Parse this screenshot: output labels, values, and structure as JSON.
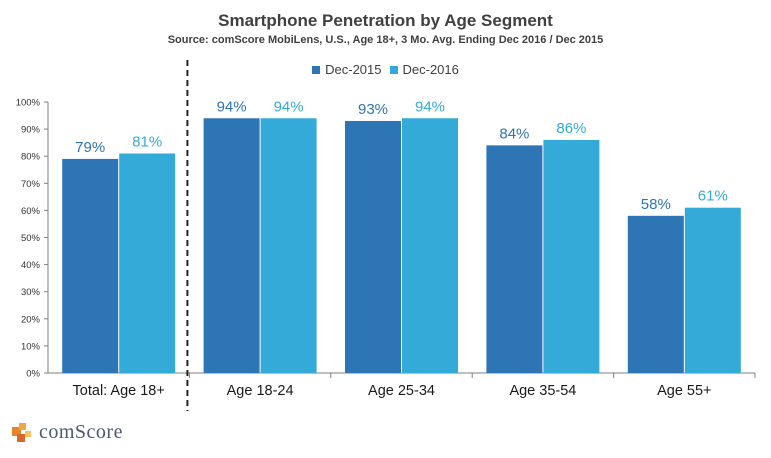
{
  "chart_data": {
    "type": "bar",
    "title": "Smartphone Penetration by Age Segment",
    "subtitle": "Source: comScore MobiLens, U.S., Age 18+, 3 Mo. Avg. Ending Dec 2016 / Dec 2015",
    "categories": [
      "Total: Age 18+",
      "Age 18-24",
      "Age 25-34",
      "Age 35-54",
      "Age 55+"
    ],
    "series": [
      {
        "name": "Dec-2015",
        "color": "#2e75b6",
        "values": [
          79,
          94,
          93,
          84,
          58
        ],
        "labels": [
          "79%",
          "94%",
          "93%",
          "84%",
          "58%"
        ]
      },
      {
        "name": "Dec-2016",
        "color": "#33aad8",
        "values": [
          81,
          94,
          94,
          86,
          61
        ],
        "labels": [
          "81%",
          "94%",
          "94%",
          "86%",
          "61%"
        ]
      }
    ],
    "ylim": [
      0,
      100
    ],
    "yticks": [
      "0%",
      "10%",
      "20%",
      "30%",
      "40%",
      "50%",
      "60%",
      "70%",
      "80%",
      "90%",
      "100%"
    ],
    "xlabel": "",
    "ylabel": "",
    "legend_position": "top-center",
    "grid": false,
    "separator_after_category": "Total: Age 18+"
  },
  "logo": {
    "text": "comScore"
  }
}
